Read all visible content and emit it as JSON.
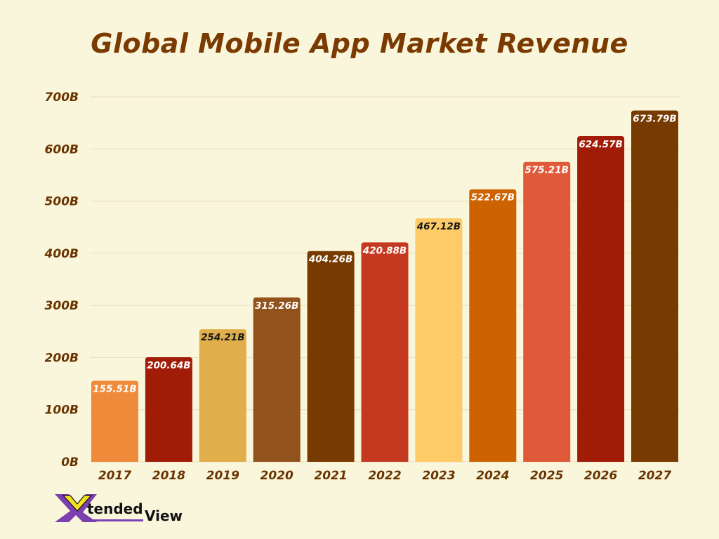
{
  "chart_data": {
    "type": "bar",
    "title": "Global Mobile App Market Revenue",
    "xlabel": "",
    "ylabel": "",
    "categories": [
      "2017",
      "2018",
      "2019",
      "2020",
      "2021",
      "2022",
      "2023",
      "2024",
      "2025",
      "2026",
      "2027"
    ],
    "values": [
      155.51,
      200.64,
      254.21,
      315.26,
      404.26,
      420.88,
      467.12,
      522.67,
      575.21,
      624.57,
      673.79
    ],
    "data_labels": [
      "155.51B",
      "200.64B",
      "254.21B",
      "315.26B",
      "404.26B",
      "420.88B",
      "467.12B",
      "522.67B",
      "575.21B",
      "624.57B",
      "673.79B"
    ],
    "colors": [
      "#ef8a3a",
      "#a11c06",
      "#e0ae4b",
      "#91521b",
      "#773a00",
      "#c4391f",
      "#fdcb68",
      "#cc6300",
      "#e05a3a",
      "#a11c06",
      "#773a00"
    ],
    "label_colors": [
      "#ffffff",
      "#ffffff",
      "#1a1a1a",
      "#ffffff",
      "#ffffff",
      "#ffffff",
      "#1a1a1a",
      "#ffffff",
      "#ffffff",
      "#ffffff",
      "#ffffff"
    ],
    "ylim": [
      0,
      700
    ],
    "yticks": [
      0,
      100,
      200,
      300,
      400,
      500,
      600,
      700
    ],
    "ytick_labels": [
      "0B",
      "100B",
      "200B",
      "300B",
      "400B",
      "500B",
      "600B",
      "700B"
    ],
    "grid": true,
    "legend": "none"
  },
  "logo": {
    "text": "XtendedView"
  }
}
